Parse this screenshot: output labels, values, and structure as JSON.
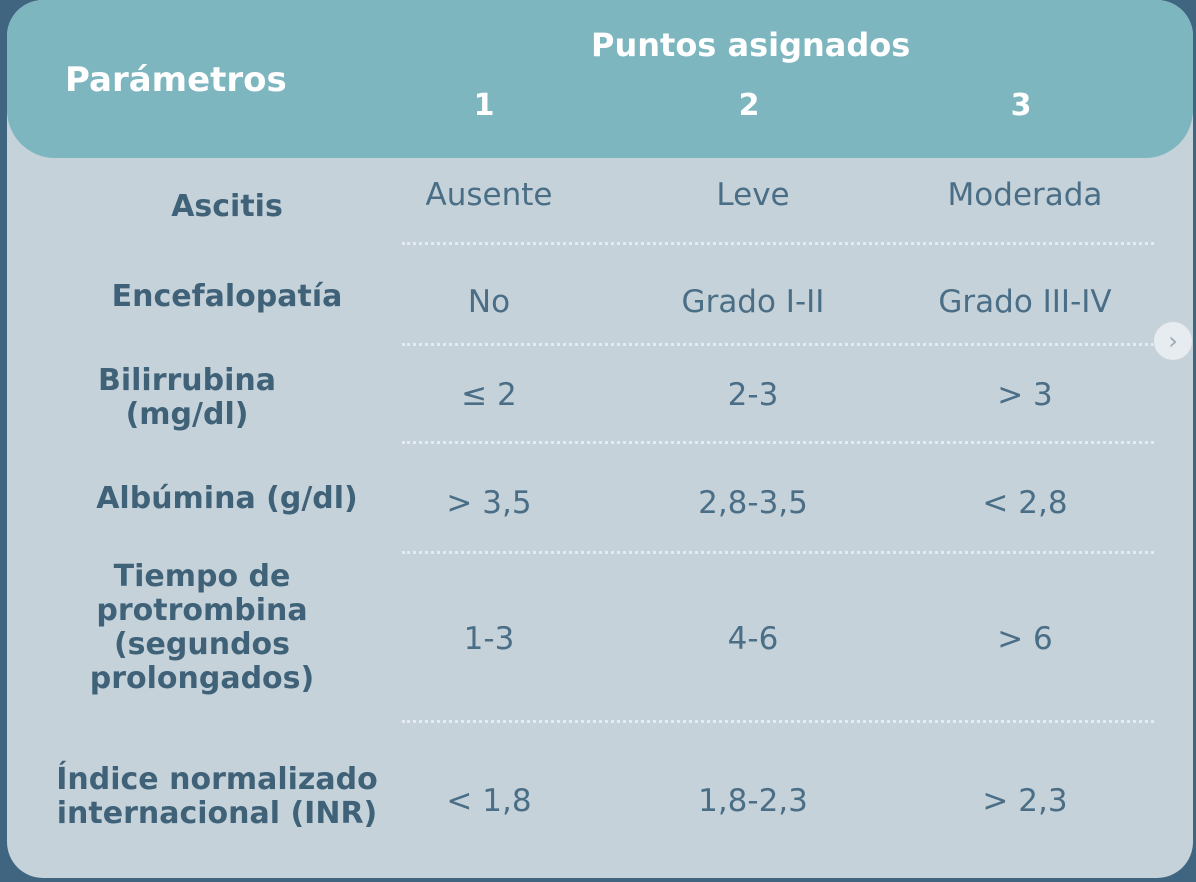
{
  "header": {
    "params_label": "Parámetros",
    "points_label": "Puntos asignados",
    "columns": [
      "1",
      "2",
      "3"
    ]
  },
  "rows": [
    {
      "param": "Ascitis",
      "values": [
        "Ausente",
        "Leve",
        "Moderada"
      ]
    },
    {
      "param": "Encefalopatía",
      "values": [
        "No",
        "Grado I-II",
        "Grado III-IV"
      ]
    },
    {
      "param": "Bilirrubina (mg/dl)",
      "values": [
        "≤ 2",
        "2-3",
        "> 3"
      ]
    },
    {
      "param": "Albúmina (g/dl)",
      "values": [
        "> 3,5",
        "2,8-3,5",
        "< 2,8"
      ]
    },
    {
      "param": "Tiempo de protrombina (segundos prolongados)",
      "values": [
        "1-3",
        "4-6",
        "> 6"
      ]
    },
    {
      "param": "Índice normalizado internacional (INR)",
      "values": [
        "< 1,8",
        "1,8-2,3",
        "> 2,3"
      ]
    }
  ],
  "nav": {
    "next_icon": "chevron-right-icon",
    "next_glyph": "›"
  },
  "colors": {
    "background": "#3f6580",
    "card": "#c6d2da",
    "header": "#7db6bf",
    "param_text": "#3f6279",
    "value_text": "#4a6e86"
  }
}
